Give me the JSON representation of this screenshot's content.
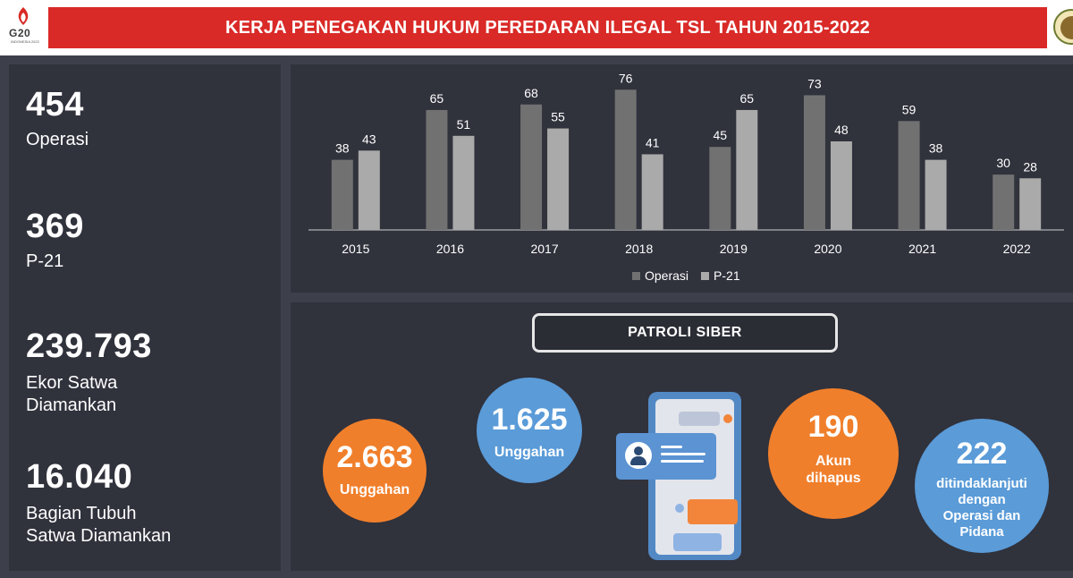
{
  "header": {
    "title": "KERJA PENEGAKAN HUKUM PEREDARAN ILEGAL TSL TAHUN 2015-2022",
    "logo_left_text": "G20",
    "logo_left_sub": "INDONESIA 2022"
  },
  "colors": {
    "title_red": "#d92a27",
    "operasi": "#717171",
    "p21": "#aaaaaa",
    "orange": "#f07f2b",
    "blue": "#5a9bd8"
  },
  "stats": [
    {
      "value": "454",
      "label": "Operasi"
    },
    {
      "value": "369",
      "label": "P-21"
    },
    {
      "value": "239.793",
      "label": "Ekor Satwa\nDiamankan"
    },
    {
      "value": "16.040",
      "label": "Bagian Tubuh\nSatwa Diamankan"
    }
  ],
  "chart_data": {
    "type": "bar",
    "categories": [
      "2015",
      "2016",
      "2017",
      "2018",
      "2019",
      "2020",
      "2021",
      "2022"
    ],
    "series": [
      {
        "name": "Operasi",
        "values": [
          38,
          65,
          68,
          76,
          45,
          73,
          59,
          30
        ]
      },
      {
        "name": "P-21",
        "values": [
          43,
          51,
          55,
          41,
          65,
          48,
          38,
          28
        ]
      }
    ],
    "ylim": [
      0,
      80
    ],
    "grid": false,
    "data_labels": true,
    "legend": "bottom-center"
  },
  "patroli": {
    "title": "PATROLI SIBER",
    "circles": [
      {
        "value": "2.663",
        "label": "Unggahan",
        "color": "orange"
      },
      {
        "value": "1.625",
        "label": "Unggahan",
        "color": "blue"
      },
      {
        "value": "190",
        "label": "Akun\ndihapus",
        "color": "orange"
      },
      {
        "value": "222",
        "label": "ditindaklanjuti\ndengan\nOperasi dan\nPidana",
        "color": "blue"
      }
    ]
  }
}
